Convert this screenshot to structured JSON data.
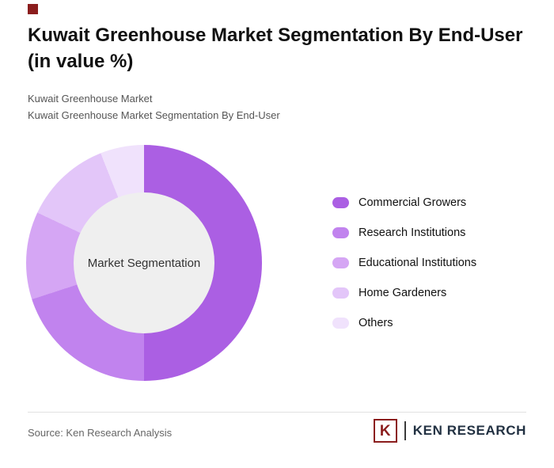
{
  "header": {
    "title": "Kuwait Greenhouse Market Segmentation By End-User (in value %)",
    "subtitle1": "Kuwait Greenhouse Market",
    "subtitle2": "Kuwait Greenhouse Market Segmentation By End-User"
  },
  "chart_data": {
    "type": "pie",
    "donut": true,
    "title": "Kuwait Greenhouse Market Segmentation By End-User (in value %)",
    "center_label": "Market Segmentation",
    "start_angle_deg": 0,
    "direction": "clockwise",
    "legend_position": "right",
    "slices": [
      {
        "label": "Commercial Growers",
        "value": 50,
        "color": "#ab5fe3"
      },
      {
        "label": "Research Institutions",
        "value": 20,
        "color": "#c183ee"
      },
      {
        "label": "Educational Institutions",
        "value": 12,
        "color": "#d5a6f4"
      },
      {
        "label": "Home Gardeners",
        "value": 12,
        "color": "#e3c6f9"
      },
      {
        "label": "Others",
        "value": 6,
        "color": "#f0e2fc"
      }
    ],
    "center_fill": "#efefef"
  },
  "footer": {
    "source": "Source: Ken Research Analysis",
    "logo_mark": "K",
    "logo_text": "KEN RESEARCH"
  },
  "colors": {
    "accent": "#8b1d1d",
    "title_text": "#111111",
    "subtitle_text": "#555555"
  }
}
